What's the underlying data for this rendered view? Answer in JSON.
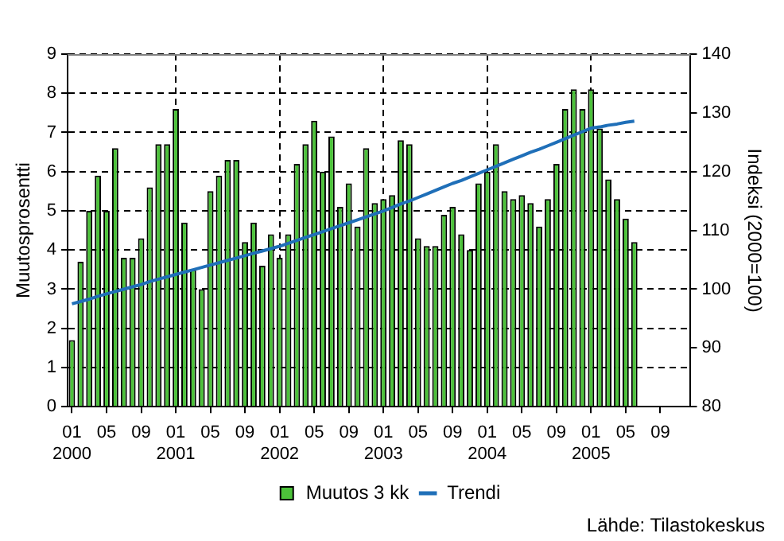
{
  "chart_data": {
    "type": "bar",
    "xlabel": null,
    "ylabel": "Muutosprosentti",
    "y2label": "Indeksi (2000=100)",
    "categories": [
      "01\n2000",
      null,
      null,
      null,
      "05",
      null,
      null,
      null,
      "09",
      null,
      null,
      null,
      "01\n2001",
      null,
      null,
      null,
      "05",
      null,
      null,
      null,
      "09",
      null,
      null,
      null,
      "01\n2002",
      null,
      null,
      null,
      "05",
      null,
      null,
      null,
      "09",
      null,
      null,
      null,
      "01\n2003",
      null,
      null,
      null,
      "05",
      null,
      null,
      null,
      "09",
      null,
      null,
      null,
      "01\n2004",
      null,
      null,
      null,
      "05",
      null,
      null,
      null,
      "09",
      null,
      null,
      null,
      "01\n2005",
      null,
      null,
      null,
      "05",
      null,
      null,
      null,
      "09",
      null,
      null,
      null
    ],
    "series": [
      {
        "name": "Muutos 3 kk",
        "color": "#4cc23a",
        "values": [
          1.7,
          3.7,
          5.0,
          5.9,
          5.0,
          6.6,
          3.8,
          3.8,
          4.3,
          5.6,
          6.7,
          6.7,
          7.6,
          4.7,
          3.5,
          3.0,
          5.5,
          5.9,
          6.3,
          6.3,
          4.2,
          4.7,
          3.6,
          4.4,
          3.8,
          4.4,
          6.2,
          6.7,
          7.3,
          6.0,
          6.9,
          5.1,
          5.7,
          4.6,
          6.6,
          5.2,
          5.3,
          5.4,
          6.8,
          6.7,
          4.3,
          4.1,
          4.1,
          4.9,
          5.1,
          4.4,
          4.0,
          5.7,
          6.0,
          6.7,
          5.5,
          5.3,
          5.4,
          5.2,
          4.6,
          5.3,
          6.2,
          7.6,
          8.1,
          7.6,
          8.1,
          7.1,
          5.8,
          5.3,
          4.8,
          4.2,
          null,
          null,
          null,
          null,
          null,
          null
        ]
      },
      {
        "name": "Trendi",
        "type": "line",
        "axis": "y2",
        "color": "#1f6fb8",
        "values": [
          97.5,
          97.9,
          98.3,
          98.8,
          99.2,
          99.6,
          100.0,
          100.4,
          100.8,
          101.3,
          101.7,
          102.1,
          102.5,
          102.9,
          103.3,
          103.7,
          104.1,
          104.5,
          104.9,
          105.3,
          105.7,
          106.1,
          106.5,
          106.9,
          107.3,
          107.8,
          108.3,
          108.8,
          109.3,
          109.8,
          110.3,
          110.8,
          111.3,
          111.8,
          112.3,
          112.8,
          113.3,
          113.9,
          114.5,
          115.0,
          115.6,
          116.2,
          116.8,
          117.4,
          118.0,
          118.5,
          119.1,
          119.7,
          120.3,
          120.9,
          121.5,
          122.1,
          122.7,
          123.3,
          123.8,
          124.4,
          125.0,
          125.6,
          126.2,
          126.8,
          127.4,
          127.6,
          127.9,
          128.1,
          128.4,
          128.6,
          null,
          null,
          null,
          null,
          null,
          null
        ]
      }
    ],
    "ylim": [
      0,
      9
    ],
    "yticks": [
      0,
      1,
      2,
      3,
      4,
      5,
      6,
      7,
      8,
      9
    ],
    "y2lim": [
      80,
      140
    ],
    "y2ticks": [
      80,
      90,
      100,
      110,
      120,
      130,
      140
    ],
    "grid": true,
    "legend": "bottom",
    "marker": "none",
    "line_style": "solid",
    "annotations": [
      "Lähde: Tilastokeskus"
    ]
  }
}
